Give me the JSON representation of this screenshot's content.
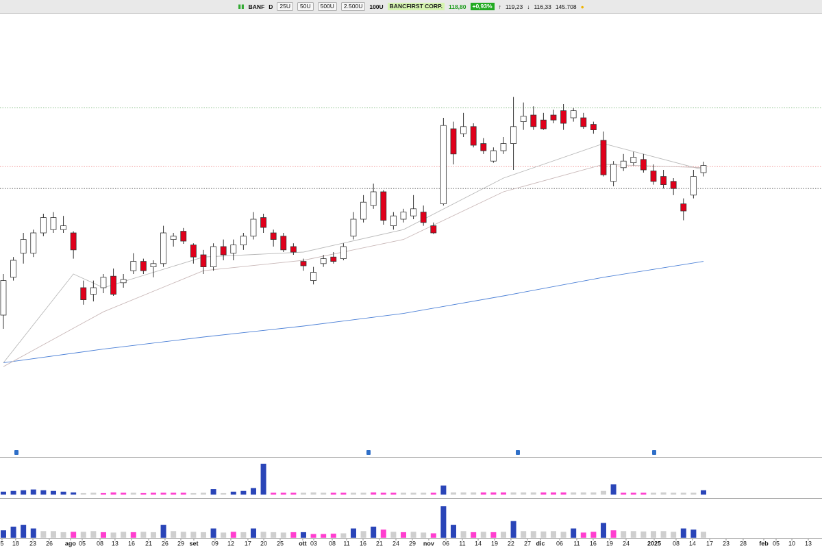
{
  "toolbar": {
    "symbol": "BANF",
    "period": "D",
    "ranges": [
      "25U",
      "50U",
      "500U",
      "2.500U"
    ],
    "bars": "100U",
    "name": "BANCFIRST CORP.",
    "last": "118,80",
    "change": "+0,93%",
    "high": "119,23",
    "low": "116,33",
    "volume": "145.708"
  },
  "chart_data": {
    "type": "candlestick",
    "up_color": "#ffffff",
    "down_color": "#e0001b",
    "wick_color": "#333333",
    "xlim": [
      -0.34,
      81.85
    ],
    "ylim": [
      67.5,
      150
    ],
    "ohlc": [
      [
        92.5,
        100,
        90,
        98.8
      ],
      [
        99.4,
        103.1,
        98.8,
        102.5
      ],
      [
        103.8,
        107.5,
        101.9,
        106.3
      ],
      [
        103.8,
        108.1,
        103.1,
        107.5
      ],
      [
        107.5,
        111,
        106.9,
        110.3
      ],
      [
        108.1,
        111.3,
        107.5,
        110.3
      ],
      [
        108.1,
        110.6,
        107.5,
        108.8
      ],
      [
        107.5,
        107.8,
        102.8,
        104.4
      ],
      [
        97.5,
        98.8,
        94.4,
        95.3
      ],
      [
        96.3,
        98.8,
        95,
        97.5
      ],
      [
        97.5,
        100,
        96.5,
        99.4
      ],
      [
        99.6,
        101,
        96,
        96.3
      ],
      [
        98.4,
        100,
        97.5,
        99
      ],
      [
        100.6,
        103.8,
        100,
        102.3
      ],
      [
        102.3,
        102.8,
        100,
        100.6
      ],
      [
        101.3,
        102.5,
        99.4,
        101.9
      ],
      [
        101.9,
        108.8,
        101.3,
        107.5
      ],
      [
        106.3,
        107.5,
        105,
        106.9
      ],
      [
        107.8,
        108.4,
        105.5,
        106
      ],
      [
        105.3,
        105.6,
        101.9,
        103.1
      ],
      [
        103.5,
        104.4,
        100,
        101.3
      ],
      [
        101.3,
        105.6,
        100.6,
        105
      ],
      [
        105,
        106.3,
        102.5,
        103.5
      ],
      [
        103.8,
        106.3,
        102.5,
        105.3
      ],
      [
        105.3,
        107.5,
        104.4,
        106.9
      ],
      [
        106.9,
        111.3,
        106.3,
        110
      ],
      [
        110.3,
        111,
        107.5,
        108.5
      ],
      [
        107.5,
        108.1,
        105,
        106.3
      ],
      [
        106.9,
        107.5,
        104,
        104.4
      ],
      [
        105,
        105.6,
        103.5,
        104
      ],
      [
        102.3,
        102.8,
        100.6,
        101.5
      ],
      [
        98.8,
        101.3,
        98.1,
        100.3
      ],
      [
        101.9,
        103.5,
        101.3,
        102.8
      ],
      [
        103.1,
        104,
        101.9,
        102.3
      ],
      [
        102.8,
        105.6,
        102.5,
        105
      ],
      [
        106.9,
        111.3,
        106.3,
        110
      ],
      [
        110,
        114.4,
        109.4,
        113.1
      ],
      [
        112.5,
        116.5,
        111.9,
        115
      ],
      [
        115,
        115.3,
        109,
        109.8
      ],
      [
        108.8,
        111.3,
        108.1,
        110.6
      ],
      [
        110,
        111.9,
        109.4,
        111.3
      ],
      [
        110.6,
        114.4,
        110,
        111.9
      ],
      [
        111.3,
        112.5,
        108.8,
        109.4
      ],
      [
        108.8,
        109.4,
        107.3,
        107.5
      ],
      [
        112.8,
        128.5,
        112.5,
        127.1
      ],
      [
        126.5,
        127.8,
        120,
        121.9
      ],
      [
        125.6,
        129.4,
        125,
        126.9
      ],
      [
        126.9,
        127.5,
        123.1,
        123.5
      ],
      [
        123.8,
        124.8,
        121.9,
        122.5
      ],
      [
        120.6,
        123.1,
        120.3,
        122.5
      ],
      [
        122.5,
        125,
        121.9,
        123.8
      ],
      [
        123.8,
        132.3,
        119,
        126.9
      ],
      [
        127.8,
        131.3,
        126.3,
        128.8
      ],
      [
        129,
        130.6,
        126.3,
        126.9
      ],
      [
        128.1,
        129.4,
        126.3,
        126.5
      ],
      [
        129,
        130,
        127.5,
        128.1
      ],
      [
        129.8,
        131,
        126.3,
        127.5
      ],
      [
        128.5,
        130.3,
        127.8,
        129.8
      ],
      [
        128.5,
        129.4,
        126.5,
        126.9
      ],
      [
        127.3,
        127.8,
        125.6,
        126.3
      ],
      [
        124.4,
        126,
        117.8,
        118.1
      ],
      [
        116.9,
        120.6,
        116,
        120
      ],
      [
        119.4,
        121.9,
        118.8,
        120.6
      ],
      [
        120.3,
        122.3,
        119.8,
        121.3
      ],
      [
        120.9,
        121.9,
        118.5,
        119
      ],
      [
        118.8,
        120,
        116.3,
        116.9
      ],
      [
        117.8,
        119,
        115.6,
        116.3
      ],
      [
        116.9,
        117.5,
        114.4,
        115.6
      ],
      [
        112.8,
        113.8,
        109.8,
        111.5
      ],
      [
        114.4,
        119,
        113.8,
        117.8
      ],
      [
        118.5,
        120.5,
        117.8,
        119.8
      ]
    ],
    "moving_averages": [
      {
        "color": "#4a7fd6",
        "x": [
          0,
          10,
          20,
          30,
          40,
          50,
          60,
          70
        ],
        "values": [
          83.8,
          86.3,
          88.5,
          90.5,
          92.8,
          96,
          99.4,
          102.3
        ]
      },
      {
        "color": "#b8b8b8",
        "x": [
          0,
          7,
          10,
          20,
          30,
          40,
          50,
          60,
          70
        ],
        "values": [
          83.8,
          100,
          97.5,
          103.1,
          104,
          108.1,
          117.5,
          123.8,
          119
        ]
      },
      {
        "color": "#c9b8b8",
        "x": [
          0,
          10,
          20,
          30,
          40,
          50,
          60,
          70
        ],
        "values": [
          83.1,
          93.1,
          100.6,
          102.5,
          106.3,
          115,
          120,
          119.4
        ]
      }
    ],
    "levels": [
      {
        "value": 130.3,
        "color": "#5aa35a"
      },
      {
        "value": 119.6,
        "color": "#f08a8a"
      },
      {
        "value": 115.6,
        "color": "#555555"
      }
    ],
    "volume_palette": {
      "b": "#2a45b8",
      "g": "#cfcfcf",
      "p": "#ff3fcf"
    },
    "volume_panels": [
      {
        "ylim": [
          0,
          100
        ],
        "values": [
          8,
          10,
          12,
          14,
          12,
          10,
          8,
          6,
          4,
          5,
          4,
          6,
          5,
          5,
          4,
          5,
          5,
          5,
          5,
          4,
          5,
          15,
          4,
          8,
          10,
          18,
          85,
          5,
          5,
          5,
          5,
          6,
          5,
          5,
          5,
          5,
          5,
          6,
          5,
          5,
          5,
          5,
          5,
          5,
          25,
          6,
          6,
          6,
          6,
          6,
          6,
          6,
          6,
          6,
          6,
          6,
          6,
          6,
          6,
          6,
          10,
          28,
          5,
          5,
          5,
          5,
          6,
          5,
          5,
          5,
          12
        ],
        "colors": "bbbbbbbbggpppgpppppggbgbbbbpppgggppggpppgggpbgggpppgggpppggggbpppgggggb"
      },
      {
        "ylim": [
          0,
          100
        ],
        "values": [
          20,
          30,
          35,
          25,
          18,
          18,
          15,
          16,
          16,
          18,
          15,
          14,
          16,
          15,
          16,
          15,
          35,
          18,
          16,
          16,
          15,
          25,
          14,
          16,
          15,
          25,
          16,
          15,
          14,
          15,
          15,
          10,
          10,
          11,
          12,
          25,
          18,
          30,
          22,
          16,
          15,
          16,
          14,
          12,
          85,
          35,
          18,
          15,
          16,
          15,
          16,
          45,
          18,
          18,
          17,
          18,
          16,
          25,
          14,
          16,
          40,
          20,
          18,
          18,
          17,
          18,
          18,
          16,
          25,
          22,
          16
        ],
        "colors": "bbbbgggpggpggpggbggggbgpgbgggpbpppgbgbpgpggpbbgpgpgbgggggbppbpggggggbbg"
      }
    ],
    "xticks": [
      {
        "value": -0.14,
        "label": "5"
      },
      {
        "value": 1.23,
        "label": "18"
      },
      {
        "value": 2.95,
        "label": "23"
      },
      {
        "value": 4.59,
        "label": "26"
      },
      {
        "value": 6.71,
        "label": "ago",
        "major": true
      },
      {
        "value": 7.88,
        "label": "05"
      },
      {
        "value": 9.66,
        "label": "08"
      },
      {
        "value": 11.16,
        "label": "13"
      },
      {
        "value": 12.81,
        "label": "16"
      },
      {
        "value": 14.52,
        "label": "21"
      },
      {
        "value": 16.16,
        "label": "26"
      },
      {
        "value": 17.74,
        "label": "29"
      },
      {
        "value": 19.04,
        "label": "set",
        "major": true
      },
      {
        "value": 21.16,
        "label": "09"
      },
      {
        "value": 22.74,
        "label": "12"
      },
      {
        "value": 24.45,
        "label": "17"
      },
      {
        "value": 26.03,
        "label": "20"
      },
      {
        "value": 27.67,
        "label": "25"
      },
      {
        "value": 29.93,
        "label": "ott",
        "major": true
      },
      {
        "value": 31.03,
        "label": "03"
      },
      {
        "value": 32.88,
        "label": "08"
      },
      {
        "value": 34.32,
        "label": "11"
      },
      {
        "value": 35.96,
        "label": "16"
      },
      {
        "value": 37.6,
        "label": "21"
      },
      {
        "value": 39.25,
        "label": "24"
      },
      {
        "value": 40.89,
        "label": "29"
      },
      {
        "value": 42.53,
        "label": "nov",
        "major": true
      },
      {
        "value": 44.25,
        "label": "06"
      },
      {
        "value": 45.89,
        "label": "11"
      },
      {
        "value": 47.47,
        "label": "14"
      },
      {
        "value": 49.11,
        "label": "19"
      },
      {
        "value": 50.75,
        "label": "22"
      },
      {
        "value": 52.4,
        "label": "27"
      },
      {
        "value": 53.7,
        "label": "dic",
        "major": true
      },
      {
        "value": 55.62,
        "label": "06"
      },
      {
        "value": 57.33,
        "label": "11"
      },
      {
        "value": 58.97,
        "label": "16"
      },
      {
        "value": 60.62,
        "label": "19"
      },
      {
        "value": 62.26,
        "label": "24"
      },
      {
        "value": 65.07,
        "label": "2025",
        "major": true
      },
      {
        "value": 67.26,
        "label": "08"
      },
      {
        "value": 68.9,
        "label": "14"
      },
      {
        "value": 70.62,
        "label": "17"
      },
      {
        "value": 72.26,
        "label": "23"
      },
      {
        "value": 73.97,
        "label": "28"
      },
      {
        "value": 76.03,
        "label": "feb",
        "major": true
      },
      {
        "value": 77.26,
        "label": "05"
      },
      {
        "value": 78.84,
        "label": "10"
      },
      {
        "value": 80.48,
        "label": "13"
      }
    ]
  }
}
